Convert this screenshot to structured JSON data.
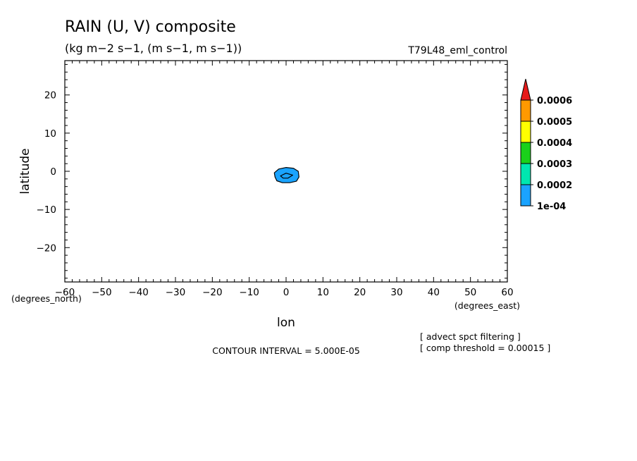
{
  "chart_data": {
    "type": "heatmap",
    "title": "RAIN (U, V) composite",
    "subtitle": "(kg m−2 s−1, (m s−1, m s−1))",
    "experiment": "T79L48_eml_control",
    "xlabel": "lon",
    "ylabel": "latitude",
    "x_unit": "(degrees_east)",
    "y_unit": "(degrees_north)",
    "xlim": [
      -60,
      60
    ],
    "ylim": [
      -29,
      29
    ],
    "x_ticks": [
      -60,
      -50,
      -40,
      -30,
      -20,
      -10,
      0,
      10,
      20,
      30,
      40,
      50,
      60
    ],
    "y_ticks": [
      -20,
      -10,
      0,
      10,
      20
    ],
    "contour_interval_text": "CONTOUR INTERVAL = 5.000E-05",
    "notes": [
      "[ advect spct filtering ]",
      "[ comp threshold = 0.00015 ]"
    ],
    "colorbar": {
      "labels": [
        "1e-04",
        "0.0002",
        "0.0003",
        "0.0004",
        "0.0005",
        "0.0006"
      ],
      "colors": [
        "#1aa3ff",
        "#00e6b0",
        "#1ad11a",
        "#ffff00",
        "#ff9900",
        "#e61a1a"
      ]
    },
    "contours": [
      {
        "level": 0.0001,
        "fill": "#1aa3ff",
        "points": [
          [
            -3,
            -1.5
          ],
          [
            -2.5,
            -2.5
          ],
          [
            -1,
            -3
          ],
          [
            1,
            -3
          ],
          [
            2.8,
            -2.6
          ],
          [
            3.5,
            -1.5
          ],
          [
            3.3,
            0
          ],
          [
            2,
            0.8
          ],
          [
            0,
            1
          ],
          [
            -2,
            0.6
          ],
          [
            -3.2,
            -0.4
          ]
        ]
      },
      {
        "level": 0.00015,
        "fill": "#1aa3ff",
        "points": [
          [
            -1.5,
            -1.2
          ],
          [
            0,
            -0.5
          ],
          [
            1.8,
            -1
          ],
          [
            0.5,
            -1.8
          ],
          [
            -0.8,
            -1.8
          ]
        ]
      }
    ]
  }
}
